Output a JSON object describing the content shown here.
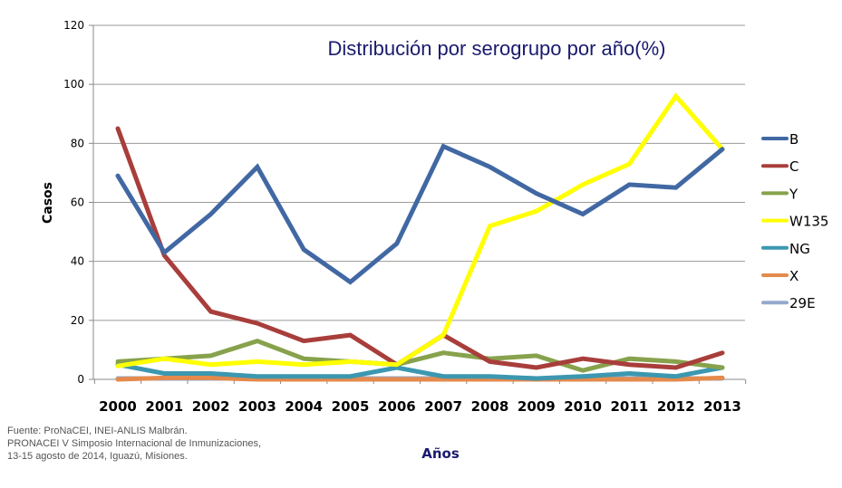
{
  "chart_data": {
    "type": "line",
    "title": "Distribución por serogrupo por año(%)",
    "xlabel": "Años",
    "ylabel": "Casos",
    "ylim": [
      0,
      120
    ],
    "yticks": [
      "0",
      "20",
      "40",
      "60",
      "80",
      "100",
      "120"
    ],
    "grid": true,
    "legend_position": "right",
    "categories": [
      "2000",
      "2001",
      "2002",
      "2003",
      "2004",
      "2005",
      "2006",
      "2007",
      "2008",
      "2009",
      "2010",
      "2011",
      "2012",
      "2013"
    ],
    "series": [
      {
        "name": "B",
        "color": "#4168a3",
        "values": [
          69,
          43,
          56,
          72,
          44,
          33,
          46,
          79,
          72,
          63,
          56,
          66,
          65,
          78
        ]
      },
      {
        "name": "C",
        "color": "#a83e3b",
        "values": [
          85,
          42,
          23,
          19,
          13,
          15,
          5,
          15,
          6,
          4,
          7,
          5,
          4,
          9
        ]
      },
      {
        "name": "Y",
        "color": "#87a24c",
        "values": [
          6,
          7,
          8,
          13,
          7,
          6,
          5,
          9,
          7,
          8,
          3,
          7,
          6,
          4
        ]
      },
      {
        "name": "W135",
        "color": "#ffff00",
        "values": [
          4.5,
          7,
          5,
          6,
          5,
          6,
          5,
          15,
          52,
          57,
          66,
          73,
          96,
          78
        ]
      },
      {
        "name": "NG",
        "color": "#3c97b0",
        "values": [
          5,
          2,
          2,
          1,
          1,
          1,
          4,
          1,
          1,
          0.3,
          1,
          2,
          1,
          4
        ]
      },
      {
        "name": "X",
        "color": "#e48a4c",
        "values": [
          0,
          0.5,
          0.5,
          0,
          0,
          0,
          0,
          0,
          0,
          0,
          0,
          0,
          0,
          0.5
        ]
      },
      {
        "name": "29E",
        "color": "#94a9cc",
        "values": [
          0.3,
          0.3,
          0.3,
          0.3,
          0.3,
          0.3,
          0.3,
          0.3,
          0.8,
          0.3,
          0.3,
          0.3,
          0.3,
          0.3
        ]
      }
    ]
  },
  "source": {
    "lines": [
      "Fuente: ProNaCEI, INEI-ANLIS Malbrán.",
      "PRONACEI V Simposio Internacional de Inmunizaciones,",
      "13-15 agosto de 2014, Iguazú, Misiones."
    ]
  }
}
